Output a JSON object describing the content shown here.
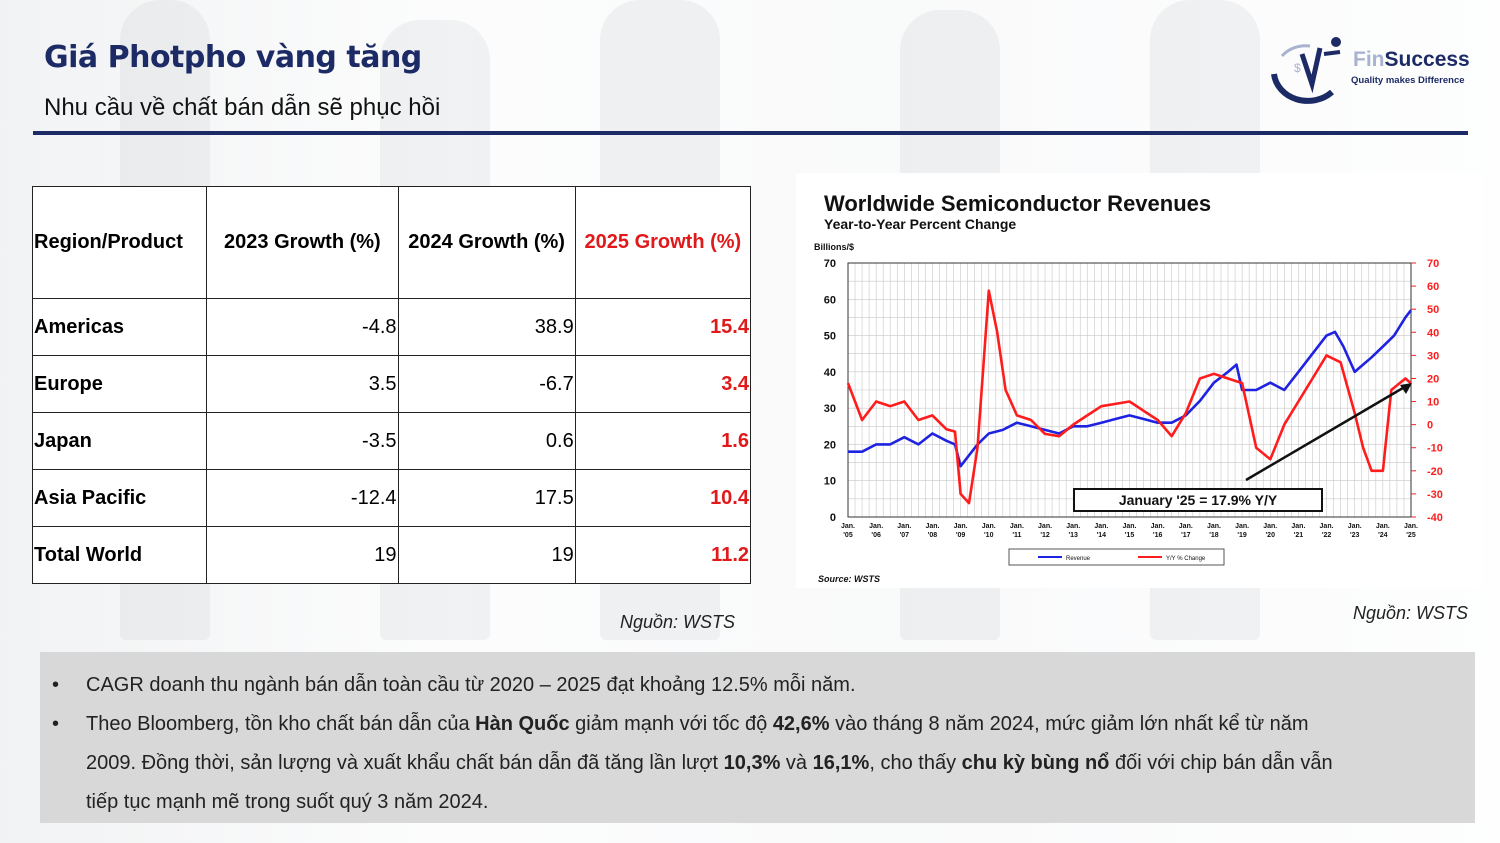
{
  "header": {
    "title": "Giá Photpho vàng tăng",
    "subtitle": "Nhu cầu về chất bán dẫn sẽ phục hồi"
  },
  "logo": {
    "name_part1": "Fin",
    "name_part2": "Success",
    "tagline": "Quality makes Difference"
  },
  "table": {
    "headers": [
      "Region/Product",
      "2023 Growth (%)",
      "2024 Growth (%)",
      "2025 Growth (%)"
    ],
    "rows": [
      {
        "region": "Americas",
        "g2023": "-4.8",
        "g2024": "38.9",
        "g2025": "15.4"
      },
      {
        "region": "Europe",
        "g2023": "3.5",
        "g2024": "-6.7",
        "g2025": "3.4"
      },
      {
        "region": "Japan",
        "g2023": "-3.5",
        "g2024": "0.6",
        "g2025": "1.6"
      },
      {
        "region": "Asia Pacific",
        "g2023": "-12.4",
        "g2024": "17.5",
        "g2025": "10.4"
      },
      {
        "region": "Total World",
        "g2023": "19",
        "g2024": "19",
        "g2025": "11.2"
      }
    ],
    "source": "Nguồn: WSTS"
  },
  "chart_source": "Nguồn: WSTS",
  "chart_data": {
    "type": "line",
    "title": "Worldwide Semiconductor Revenues",
    "subtitle": "Year-to-Year Percent Change",
    "ylabel_left": "Billions/$",
    "ylim_left": [
      0,
      70
    ],
    "ylim_right": [
      -40,
      70
    ],
    "yticks_left": [
      "0",
      "10",
      "20",
      "30",
      "40",
      "50",
      "60",
      "70"
    ],
    "yticks_right": [
      "-40",
      "-30",
      "-20",
      "-10",
      "0",
      "10",
      "20",
      "30",
      "40",
      "50",
      "60",
      "70"
    ],
    "x_ticks": [
      "Jan. '05",
      "Jan. '06",
      "Jan. '07",
      "Jan. '08",
      "Jan. '09",
      "Jan. '10",
      "Jan. '11",
      "Jan. '12",
      "Jan. '13",
      "Jan. '14",
      "Jan. '15",
      "Jan. '16",
      "Jan. '17",
      "Jan. '18",
      "Jan. '19",
      "Jan. '20",
      "Jan. '21",
      "Jan. '22",
      "Jan. '23",
      "Jan. '24",
      "Jan. '25"
    ],
    "annotation": "January '25 = 17.9% Y/Y",
    "source": "Source: WSTS",
    "series": [
      {
        "name": "Revenue",
        "axis": "left",
        "color": "#1f22e0",
        "x": [
          2005.0,
          2005.5,
          2006.0,
          2006.5,
          2007.0,
          2007.5,
          2008.0,
          2008.5,
          2008.8,
          2009.0,
          2009.3,
          2009.6,
          2010.0,
          2010.5,
          2011.0,
          2011.5,
          2012.0,
          2012.5,
          2013.0,
          2013.5,
          2014.0,
          2014.5,
          2015.0,
          2015.5,
          2016.0,
          2016.5,
          2017.0,
          2017.5,
          2018.0,
          2018.5,
          2018.8,
          2019.0,
          2019.5,
          2020.0,
          2020.5,
          2021.0,
          2021.5,
          2022.0,
          2022.3,
          2022.6,
          2023.0,
          2023.3,
          2023.6,
          2024.0,
          2024.4,
          2024.8,
          2025.0
        ],
        "values": [
          18,
          18,
          20,
          20,
          22,
          20,
          23,
          21,
          20,
          14,
          17,
          20,
          23,
          24,
          26,
          25,
          24,
          23,
          25,
          25,
          26,
          27,
          28,
          27,
          26,
          26,
          28,
          32,
          37,
          40,
          42,
          35,
          35,
          37,
          35,
          40,
          45,
          50,
          51,
          47,
          40,
          42,
          44,
          47,
          50,
          55,
          57
        ]
      },
      {
        "name": "Y/Y % Change",
        "axis": "right",
        "color": "#ff1c1c",
        "x": [
          2005.0,
          2005.5,
          2006.0,
          2006.5,
          2007.0,
          2007.5,
          2008.0,
          2008.5,
          2008.8,
          2009.0,
          2009.3,
          2009.6,
          2010.0,
          2010.3,
          2010.6,
          2011.0,
          2011.5,
          2012.0,
          2012.5,
          2013.0,
          2013.5,
          2014.0,
          2014.5,
          2015.0,
          2015.5,
          2016.0,
          2016.5,
          2017.0,
          2017.5,
          2018.0,
          2018.5,
          2019.0,
          2019.5,
          2020.0,
          2020.5,
          2021.0,
          2021.5,
          2022.0,
          2022.5,
          2023.0,
          2023.3,
          2023.6,
          2024.0,
          2024.3,
          2024.6,
          2024.8,
          2025.0
        ],
        "values": [
          18,
          2,
          10,
          8,
          10,
          2,
          4,
          -2,
          -3,
          -30,
          -34,
          -10,
          58,
          40,
          15,
          4,
          2,
          -4,
          -5,
          0,
          4,
          8,
          9,
          10,
          6,
          2,
          -5,
          5,
          20,
          22,
          20,
          18,
          -10,
          -15,
          0,
          10,
          20,
          30,
          27,
          5,
          -10,
          -20,
          -20,
          15,
          18,
          20,
          17.9
        ]
      }
    ],
    "legend_position": "bottom",
    "grid": true
  },
  "notes": {
    "bullet1": "CAGR doanh thu ngành bán dẫn toàn cầu từ 2020 – 2025 đạt khoảng 12.5% mỗi năm.",
    "b2_p1": "Theo Bloomberg, tồn kho chất bán dẫn của ",
    "b2_korea": "Hàn Quốc",
    "b2_p2": " giảm mạnh với tốc độ ",
    "b2_pct": "42,6%",
    "b2_p3": " vào tháng 8 năm 2024, mức giảm lớn nhất kể từ năm",
    "b2_l2_p1": "2009. Đồng thời, sản lượng và xuất khẩu chất bán dẫn đã tăng lần lượt ",
    "b2_prod": "10,3%",
    "b2_and": " và ",
    "b2_exp": "16,1%",
    "b2_l2_p2": ", cho thấy ",
    "b2_boom": "chu kỳ bùng nổ",
    "b2_l2_p3": " đối với chip bán dẫn vẫn",
    "b2_l3": "tiếp tục mạnh mẽ trong suốt quý 3 năm 2024."
  }
}
